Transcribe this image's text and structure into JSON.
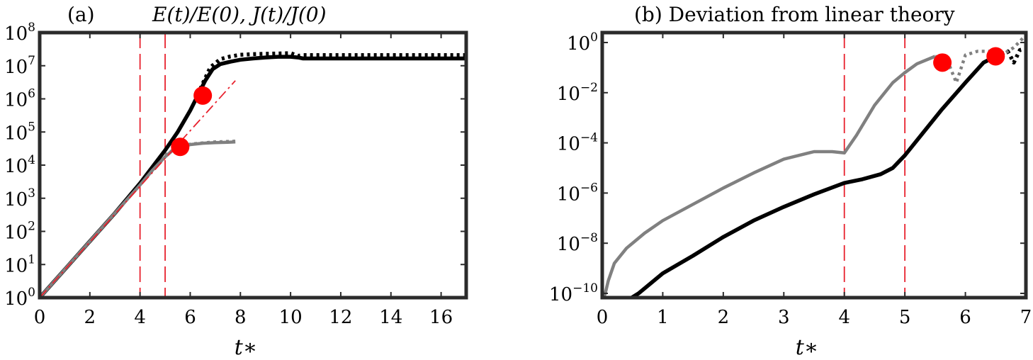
{
  "chart_data": [
    {
      "type": "line",
      "panel_label": "(a)",
      "title": "E(t)/E(0), J(t)/J(0)",
      "xlabel": "t∗",
      "ylabel": "",
      "xlim": [
        0,
        17
      ],
      "ylim_log10": [
        0,
        8
      ],
      "yscale": "log",
      "xticks": [
        "0",
        "2",
        "4",
        "6",
        "8",
        "10",
        "12",
        "14",
        "16"
      ],
      "yticks_exponent": [
        "0",
        "1",
        "2",
        "3",
        "4",
        "5",
        "6",
        "7",
        "8"
      ],
      "ytick_base": "10",
      "series": [
        {
          "style": "black-solid",
          "color": "#000000",
          "dash": false,
          "x": [
            0,
            1,
            2,
            3,
            4,
            4.5,
            5,
            5.5,
            6,
            6.3,
            6.6,
            6.9,
            7.2,
            7.6,
            8,
            8.5,
            9,
            9.5,
            10,
            10.3,
            10.5,
            11,
            12,
            13,
            14,
            15,
            16,
            17
          ],
          "log10y": [
            0,
            0.85,
            1.7,
            2.55,
            3.45,
            3.95,
            4.45,
            5.0,
            5.65,
            6.1,
            6.55,
            6.9,
            7.05,
            7.12,
            7.18,
            7.22,
            7.25,
            7.27,
            7.27,
            7.25,
            7.22,
            7.22,
            7.22,
            7.22,
            7.22,
            7.22,
            7.22,
            7.22
          ]
        },
        {
          "style": "black-dotted",
          "color": "#000000",
          "dash": true,
          "x": [
            6.4,
            6.8,
            7.2,
            7.6,
            8,
            8.5,
            9,
            9.5,
            10,
            10.3,
            10.5,
            11,
            12,
            13,
            14,
            15,
            16,
            17
          ],
          "log10y": [
            6.3,
            6.95,
            7.2,
            7.28,
            7.33,
            7.35,
            7.36,
            7.37,
            7.38,
            7.3,
            7.32,
            7.32,
            7.32,
            7.32,
            7.32,
            7.32,
            7.32,
            7.32
          ]
        },
        {
          "style": "gray-solid",
          "color": "#808080",
          "dash": false,
          "x": [
            0,
            1,
            2,
            3,
            4,
            4.5,
            5,
            5.3,
            5.6,
            6,
            6.5,
            7,
            7.5,
            7.8
          ],
          "log10y": [
            0,
            0.85,
            1.7,
            2.55,
            3.4,
            3.85,
            4.25,
            4.45,
            4.55,
            4.62,
            4.66,
            4.68,
            4.69,
            4.7
          ]
        },
        {
          "style": "gray-dotted",
          "color": "#808080",
          "dash": true,
          "x": [
            5,
            5.5,
            6,
            6.5,
            7,
            7.8
          ],
          "log10y": [
            4.3,
            4.55,
            4.63,
            4.67,
            4.7,
            4.72
          ]
        },
        {
          "style": "red-dashdot",
          "color": "#e8212d",
          "dash": true,
          "x": [
            0,
            2,
            4,
            6,
            7.8
          ],
          "log10y": [
            0,
            1.68,
            3.36,
            5.04,
            6.55
          ]
        }
      ],
      "vlines": [
        4,
        5
      ],
      "markers": [
        {
          "x": 5.6,
          "log10y": 4.55
        },
        {
          "x": 6.5,
          "log10y": 6.1
        }
      ]
    },
    {
      "type": "line",
      "panel_label": "(b)",
      "title": "Deviation from linear theory",
      "xlabel": "t∗",
      "ylabel": "",
      "xlim": [
        0,
        7
      ],
      "ylim_log10": [
        -10.5,
        0.6
      ],
      "yscale": "log",
      "xticks": [
        "0",
        "1",
        "2",
        "3",
        "4",
        "5",
        "6",
        "7"
      ],
      "yticks_exponent": [
        "-10",
        "-8",
        "-6",
        "-4",
        "-2",
        "0"
      ],
      "ytick_base": "10",
      "series": [
        {
          "style": "black-solid",
          "color": "#000000",
          "dash": false,
          "x": [
            0,
            0.2,
            0.4,
            0.6,
            1,
            1.5,
            2,
            2.5,
            3,
            3.5,
            4,
            4.3,
            4.6,
            4.8,
            5,
            5.3,
            5.6,
            6,
            6.3,
            6.5
          ],
          "log10y": [
            -10.4,
            -10.4,
            -10.3,
            -10.0,
            -9.2,
            -8.5,
            -7.75,
            -7.1,
            -6.55,
            -6.05,
            -5.6,
            -5.45,
            -5.25,
            -5.0,
            -4.5,
            -3.6,
            -2.7,
            -1.6,
            -0.8,
            -0.55
          ]
        },
        {
          "style": "black-dotted",
          "color": "#000000",
          "dash": true,
          "x": [
            6.5,
            6.7,
            6.8,
            6.9,
            7.0
          ],
          "log10y": [
            -0.55,
            -0.35,
            -0.8,
            -0.3,
            -0.25
          ]
        },
        {
          "style": "gray-solid",
          "color": "#808080",
          "dash": false,
          "x": [
            0,
            0.05,
            0.1,
            0.2,
            0.4,
            0.7,
            1,
            1.5,
            2,
            2.5,
            3,
            3.5,
            3.8,
            4,
            4.2,
            4.5,
            4.8,
            5,
            5.2,
            5.5
          ],
          "log10y": [
            -10.3,
            -10.0,
            -9.5,
            -8.8,
            -8.2,
            -7.6,
            -7.1,
            -6.45,
            -5.8,
            -5.2,
            -4.65,
            -4.35,
            -4.35,
            -4.4,
            -3.7,
            -2.5,
            -1.6,
            -1.2,
            -0.85,
            -0.55
          ]
        },
        {
          "style": "gray-dotted",
          "color": "#808080",
          "dash": true,
          "x": [
            5.5,
            5.7,
            5.85,
            6.0,
            6.2,
            6.4,
            6.6,
            6.8,
            7.0
          ],
          "log10y": [
            -0.55,
            -0.7,
            -1.6,
            -0.5,
            -0.35,
            -0.35,
            -0.5,
            -0.2,
            0.3
          ]
        }
      ],
      "vlines": [
        4,
        5
      ],
      "markers": [
        {
          "x": 5.62,
          "log10y": -0.8
        },
        {
          "x": 6.5,
          "log10y": -0.55
        }
      ]
    }
  ]
}
